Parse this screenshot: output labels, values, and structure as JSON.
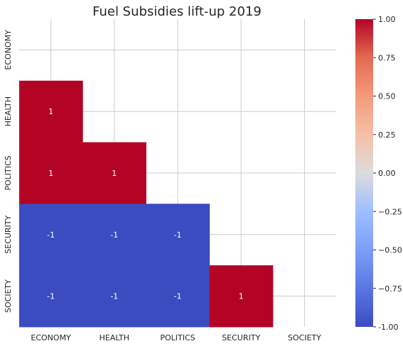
{
  "chart_data": {
    "type": "heatmap",
    "title": "Fuel Subsidies lift-up 2019",
    "xlabel": "",
    "ylabel": "",
    "x_categories": [
      "ECONOMY",
      "HEALTH",
      "POLITICS",
      "SECURITY",
      "SOCIETY"
    ],
    "y_categories": [
      "ECONOMY",
      "HEALTH",
      "POLITICS",
      "SECURITY",
      "SOCIETY"
    ],
    "mask": "upper-triangle-including-diagonal",
    "values": [
      [
        null,
        null,
        null,
        null,
        null
      ],
      [
        1,
        null,
        null,
        null,
        null
      ],
      [
        1,
        1,
        null,
        null,
        null
      ],
      [
        -1,
        -1,
        -1,
        null,
        null
      ],
      [
        -1,
        -1,
        -1,
        1,
        null
      ]
    ],
    "annotations": [
      [
        "",
        "",
        "",
        "",
        ""
      ],
      [
        "1",
        "",
        "",
        "",
        ""
      ],
      [
        "1",
        "1",
        "",
        "",
        ""
      ],
      [
        "-1",
        "-1",
        "-1",
        "",
        ""
      ],
      [
        "-1",
        "-1",
        "-1",
        "1",
        ""
      ]
    ],
    "colormap": "coolwarm",
    "colors": {
      "min": "#3b4cc0",
      "max": "#b40426"
    },
    "vmin": -1,
    "vmax": 1,
    "colorbar": {
      "ticks": [
        "-1.00",
        "−0.75",
        "−0.50",
        "−0.25",
        "0.00",
        "0.25",
        "0.50",
        "0.75",
        "1.00"
      ],
      "values": [
        -1,
        -0.75,
        -0.5,
        -0.25,
        0,
        0.25,
        0.5,
        0.75,
        1
      ],
      "position": "right"
    },
    "grid": true
  }
}
